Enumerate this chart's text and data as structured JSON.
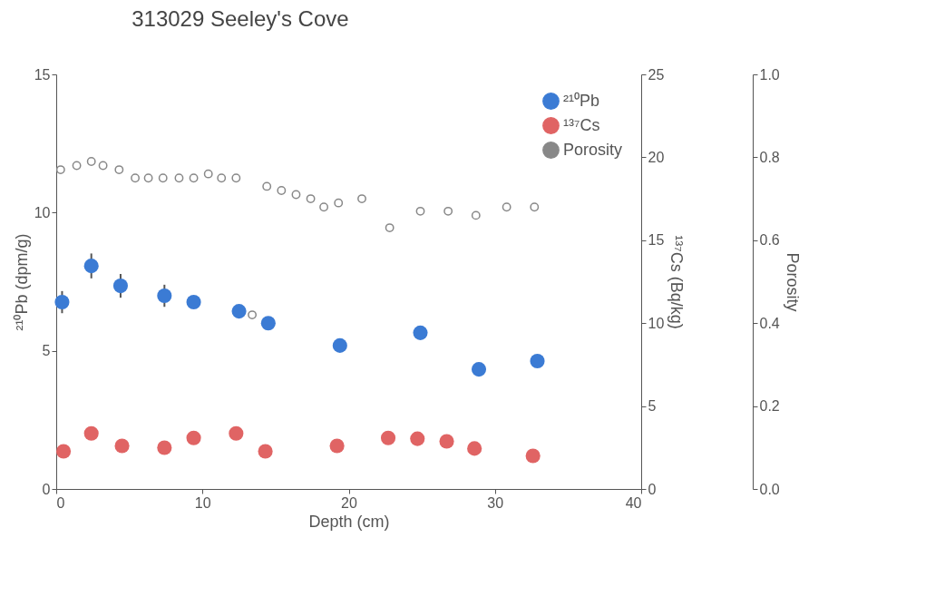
{
  "chart_data": {
    "type": "scatter",
    "title": "313029 Seeley's Cove",
    "xlabel": "Depth (cm)",
    "ylabel": "²¹⁰Pb (dpm/g)",
    "y2label": "¹³⁷Cs (Bq/kg)",
    "y3label": "Porosity",
    "xlim": [
      0,
      40
    ],
    "xticks": [
      0,
      10,
      20,
      30,
      40
    ],
    "ylim": [
      0,
      15
    ],
    "yticks": [
      0,
      5,
      10,
      15
    ],
    "y2lim": [
      0,
      25
    ],
    "y2ticks": [
      0,
      5,
      10,
      15,
      20,
      25
    ],
    "y3lim": [
      0,
      1
    ],
    "y3ticks": [
      {
        "value": 0,
        "label": "0.0"
      },
      {
        "value": 0.2,
        "label": "0.2"
      },
      {
        "value": 0.4,
        "label": "0.4"
      },
      {
        "value": 0.6,
        "label": "0.6"
      },
      {
        "value": 0.8,
        "label": "0.8"
      },
      {
        "value": 1,
        "label": "1.0"
      }
    ],
    "legend": "top right",
    "grid": false,
    "series": [
      {
        "name": "²¹⁰Pb",
        "color": "#3b7bd4",
        "marker": "circle",
        "x": [
          0.4,
          2.4,
          4.4,
          7.4,
          9.4,
          12.5,
          14.5,
          19.4,
          24.9,
          28.9,
          32.9
        ],
        "values": [
          6.76,
          8.07,
          7.35,
          6.99,
          6.76,
          6.43,
          6.0,
          5.19,
          5.65,
          4.33,
          4.63
        ],
        "errors": [
          0.4,
          0.45,
          0.43,
          0.4,
          null,
          null,
          null,
          null,
          null,
          null,
          null
        ]
      },
      {
        "name": "¹³⁷Cs",
        "color": "#e06464",
        "marker": "circle",
        "axis": "y2",
        "x": [
          0.5,
          2.4,
          4.5,
          7.4,
          9.4,
          12.3,
          14.3,
          19.2,
          22.7,
          24.7,
          26.7,
          28.6,
          32.6
        ],
        "values": [
          2.27,
          3.35,
          2.6,
          2.49,
          3.08,
          3.35,
          2.27,
          2.6,
          3.08,
          3.03,
          2.87,
          2.44,
          2.0
        ]
      },
      {
        "name": "Porosity",
        "color": "#888888",
        "marker": "circle_open",
        "axis": "y3",
        "x": [
          0.3,
          1.4,
          2.4,
          3.2,
          4.3,
          5.4,
          6.3,
          7.3,
          8.4,
          9.4,
          10.4,
          11.3,
          12.3,
          13.4,
          14.4,
          15.4,
          16.4,
          17.4,
          18.3,
          19.3,
          20.9,
          22.8,
          24.9,
          26.8,
          28.7,
          30.8,
          32.7
        ],
        "values": [
          0.77,
          0.78,
          0.79,
          0.78,
          0.77,
          0.75,
          0.75,
          0.75,
          0.75,
          0.75,
          0.76,
          0.75,
          0.75,
          0.42,
          0.73,
          0.72,
          0.71,
          0.7,
          0.68,
          0.69,
          0.7,
          0.63,
          0.67,
          0.67,
          0.66,
          0.68,
          0.68
        ]
      }
    ]
  }
}
